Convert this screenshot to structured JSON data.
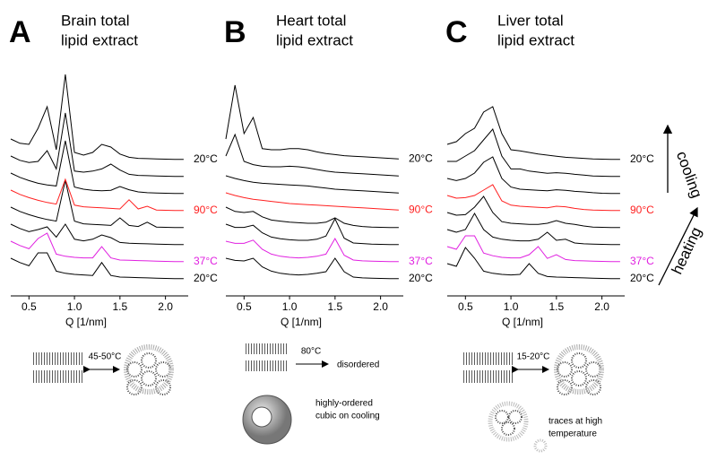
{
  "chart_data": [
    {
      "type": "line",
      "panel": "A",
      "title": [
        "Brain total",
        "lipid extract"
      ],
      "xlabel": "Q [1/nm]",
      "xlim": [
        0.3,
        2.25
      ],
      "xticks": [
        0.5,
        {
          "value": 1,
          "label": "1.0"
        },
        1.5,
        {
          "value": 2,
          "label": "2.0"
        }
      ],
      "x": [
        0.3,
        0.4,
        0.5,
        0.6,
        0.7,
        0.8,
        0.9,
        1.0,
        1.1,
        1.2,
        1.3,
        1.4,
        1.5,
        1.6,
        1.7,
        1.8,
        1.9,
        2.0,
        2.1,
        2.2
      ],
      "series": [
        {
          "name": "20°C",
          "color": "#000000",
          "values": [
            4,
            3.2,
            2.6,
            5,
            5,
            1.6,
            1.2,
            1.0,
            0.9,
            0.8,
            3.2,
            0.8,
            0.5,
            0.45,
            0.4,
            0.35,
            0.3,
            0.25,
            0.2,
            0.2
          ]
        },
        {
          "name": "37°C",
          "color": "#e020e0",
          "values": [
            4,
            3.2,
            2.6,
            4.5,
            5.5,
            1.6,
            1.2,
            1,
            0.9,
            0.9,
            3,
            0.9,
            0.5,
            0.45,
            0.4,
            0.35,
            0.3,
            0.25,
            0.2,
            0.2
          ]
        },
        {
          "color": "#000000",
          "values": [
            4,
            3.2,
            2.6,
            3,
            3.5,
            1.6,
            4,
            1.2,
            0.9,
            1.2,
            2,
            1.5,
            0.6,
            0.45,
            0.4,
            0.35,
            0.3,
            0.25,
            0.2,
            0.2
          ]
        },
        {
          "color": "#000000",
          "values": [
            4,
            3.2,
            2.6,
            2.1,
            1.7,
            1.4,
            9,
            1.4,
            0.9,
            0.8,
            0.7,
            0.6,
            2,
            0.6,
            0.4,
            1.2,
            0.3,
            0.25,
            0.2,
            0.2
          ]
        },
        {
          "name": "90°C",
          "color": "#ff2020",
          "values": [
            4,
            3.2,
            2.6,
            2.1,
            1.7,
            1.4,
            6,
            1.2,
            0.9,
            0.8,
            0.7,
            0.6,
            0.5,
            2.2,
            0.5,
            1,
            0.3,
            0.25,
            0.2,
            0.2
          ]
        },
        {
          "color": "#000000",
          "values": [
            4,
            3.2,
            2.6,
            2.1,
            1.8,
            1.6,
            10,
            1.4,
            1,
            0.8,
            0.7,
            0.8,
            1.5,
            0.9,
            0.5,
            0.35,
            0.3,
            0.25,
            0.2,
            0.2
          ]
        },
        {
          "color": "#000000",
          "values": [
            4,
            3.2,
            2.8,
            3,
            5,
            1.6,
            12,
            1.2,
            1,
            1.2,
            1.6,
            2.5,
            1.4,
            0.6,
            0.4,
            0.35,
            0.3,
            0.25,
            0.2,
            0.2
          ]
        },
        {
          "name": "20°C",
          "color": "#000000",
          "values": [
            4,
            3.2,
            3,
            6,
            10,
            2,
            16,
            1.5,
            1,
            1.5,
            3,
            2.5,
            1.2,
            0.6,
            0.4,
            0.35,
            0.3,
            0.25,
            0.2,
            0.2
          ]
        }
      ],
      "annotations": [
        "45-50°C"
      ]
    },
    {
      "type": "line",
      "panel": "B",
      "title": [
        "Heart total",
        "lipid extract"
      ],
      "xlabel": "Q [1/nm]",
      "xlim": [
        0.3,
        2.25
      ],
      "xticks": [
        0.5,
        {
          "value": 1,
          "label": "1.0"
        },
        1.5,
        {
          "value": 2,
          "label": "2.0"
        }
      ],
      "x": [
        0.3,
        0.4,
        0.5,
        0.6,
        0.7,
        0.8,
        0.9,
        1.0,
        1.1,
        1.2,
        1.3,
        1.4,
        1.5,
        1.6,
        1.7,
        1.8,
        1.9,
        2.0,
        2.1,
        2.2
      ],
      "series": [
        {
          "name": "20°C",
          "color": "#000000",
          "values": [
            4,
            3.6,
            3.5,
            4,
            2.4,
            1.6,
            1.2,
            1,
            0.9,
            1,
            1.2,
            1.5,
            4,
            1.5,
            0.5,
            0.35,
            0.3,
            0.25,
            0.2,
            0.2
          ]
        },
        {
          "name": "37°C",
          "color": "#e020e0",
          "values": [
            4,
            3.6,
            3.6,
            4.2,
            2.5,
            1.6,
            1.2,
            1,
            0.9,
            1,
            1.2,
            1.6,
            4.5,
            1.4,
            0.5,
            0.35,
            0.3,
            0.25,
            0.2,
            0.2
          ]
        },
        {
          "color": "#000000",
          "values": [
            4,
            3.4,
            3.4,
            3.8,
            2.4,
            1.6,
            1.3,
            1.1,
            1,
            1,
            1.2,
            1.8,
            5,
            1.4,
            0.5,
            0.4,
            0.3,
            0.25,
            0.2,
            0.2
          ]
        },
        {
          "color": "#000000",
          "values": [
            4,
            3.2,
            3,
            3.2,
            2.2,
            1.6,
            1.4,
            1.2,
            1.1,
            1,
            1,
            1.2,
            2,
            1,
            0.6,
            0.4,
            0.3,
            0.25,
            0.2,
            0.2
          ]
        },
        {
          "name": "90°C",
          "color": "#ff2020",
          "values": [
            3.5,
            3,
            2.6,
            2.3,
            2.1,
            1.9,
            1.7,
            1.5,
            1.4,
            1.3,
            1.2,
            1.1,
            1,
            0.9,
            0.8,
            0.7,
            0.6,
            0.5,
            0.4,
            0.3
          ]
        },
        {
          "color": "#000000",
          "values": [
            3.5,
            3,
            2.6,
            2.3,
            2.1,
            2,
            1.9,
            1.8,
            1.7,
            1.6,
            1.4,
            1.2,
            1,
            0.9,
            0.8,
            0.7,
            0.6,
            0.5,
            0.4,
            0.3
          ]
        },
        {
          "color": "#000000",
          "values": [
            4,
            8,
            3,
            2.4,
            2.1,
            2,
            2,
            2.1,
            2,
            1.8,
            1.5,
            1.2,
            1,
            0.9,
            0.8,
            0.7,
            0.6,
            0.5,
            0.4,
            0.3
          ]
        },
        {
          "name": "20°C",
          "color": "#000000",
          "values": [
            4,
            14,
            5,
            8,
            2.2,
            2,
            2,
            2.2,
            2.2,
            2,
            1.6,
            1.3,
            1.1,
            0.9,
            0.8,
            0.7,
            0.6,
            0.5,
            0.4,
            0.3
          ]
        }
      ],
      "annotations": [
        "80°C",
        "disordered",
        "highly-ordered",
        "cubic on cooling"
      ]
    },
    {
      "type": "line",
      "panel": "C",
      "title": [
        "Liver total",
        "lipid extract"
      ],
      "xlabel": "Q [1/nm]",
      "xlim": [
        0.3,
        2.25
      ],
      "xticks": [
        0.5,
        {
          "value": 1,
          "label": "1.0"
        },
        1.5,
        {
          "value": 2,
          "label": "2.0"
        }
      ],
      "x": [
        0.3,
        0.4,
        0.5,
        0.6,
        0.7,
        0.8,
        0.9,
        1.0,
        1.1,
        1.2,
        1.3,
        1.4,
        1.5,
        1.6,
        1.7,
        1.8,
        1.9,
        2.0,
        2.1,
        2.2
      ],
      "series": [
        {
          "name": "20°C",
          "color": "#000000",
          "values": [
            3,
            2.5,
            6,
            4,
            1.6,
            1.2,
            1,
            0.9,
            1,
            3,
            1.2,
            0.6,
            0.5,
            0.45,
            0.4,
            0.35,
            0.3,
            0.25,
            0.2,
            0.2
          ]
        },
        {
          "name": "37°C",
          "color": "#e020e0",
          "values": [
            3,
            2.5,
            5,
            5,
            1.8,
            1.3,
            1,
            0.9,
            0.9,
            1.5,
            3,
            0.8,
            1.5,
            0.6,
            0.4,
            0.35,
            0.3,
            0.25,
            0.2,
            0.2
          ]
        },
        {
          "color": "#000000",
          "values": [
            3,
            2.5,
            3,
            6,
            3,
            1.6,
            1.2,
            1,
            0.9,
            0.9,
            1.2,
            2.5,
            1,
            1.2,
            0.5,
            0.35,
            0.3,
            0.25,
            0.2,
            0.2
          ]
        },
        {
          "color": "#000000",
          "values": [
            3,
            2.5,
            2.6,
            4,
            6,
            3,
            1.3,
            1,
            0.9,
            0.8,
            0.8,
            1,
            1.5,
            1,
            0.8,
            0.5,
            0.3,
            0.25,
            0.2,
            0.2
          ]
        },
        {
          "name": "90°C",
          "color": "#ff2020",
          "values": [
            3,
            2.5,
            2.6,
            3,
            4,
            5,
            2,
            1.2,
            1,
            0.9,
            0.8,
            0.7,
            1,
            0.9,
            0.6,
            0.4,
            0.3,
            0.25,
            0.2,
            0.2
          ]
        },
        {
          "color": "#000000",
          "values": [
            3,
            2.6,
            3,
            4,
            6,
            7,
            3,
            1.4,
            1,
            0.9,
            0.8,
            0.7,
            0.9,
            0.8,
            0.6,
            0.5,
            0.35,
            0.25,
            0.2,
            0.2
          ]
        },
        {
          "color": "#000000",
          "values": [
            3,
            3,
            4,
            5,
            7,
            9,
            4,
            1.6,
            1.6,
            1.2,
            1,
            0.8,
            0.9,
            0.8,
            0.6,
            0.45,
            0.3,
            0.25,
            0.2,
            0.2
          ]
        },
        {
          "name": "20°C",
          "color": "#000000",
          "values": [
            3,
            3.5,
            5,
            6,
            9,
            10,
            5,
            2,
            1.8,
            1.5,
            1.2,
            1,
            0.8,
            0.6,
            0.5,
            0.4,
            0.3,
            0.25,
            0.2,
            0.2
          ]
        }
      ],
      "annotations": [
        "15-20°C",
        "traces at high",
        "temperature"
      ]
    }
  ],
  "side_labels": {
    "cooling": "cooling",
    "heating": "heating"
  }
}
